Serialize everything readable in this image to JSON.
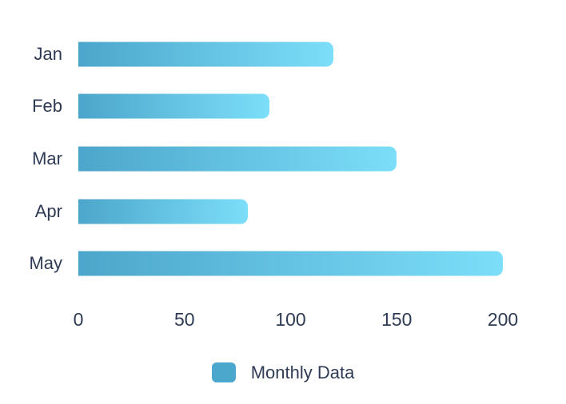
{
  "chart_data": {
    "type": "bar",
    "orientation": "horizontal",
    "title": "",
    "xlabel": "",
    "ylabel": "",
    "categories": [
      "Jan",
      "Feb",
      "Mar",
      "Apr",
      "May"
    ],
    "series": [
      {
        "name": "Monthly Data",
        "values": [
          120,
          90,
          150,
          80,
          200
        ]
      }
    ],
    "xlim": [
      0,
      200
    ],
    "xticks": [
      0,
      50,
      100,
      150,
      200
    ],
    "grid": false,
    "legend_position": "bottom",
    "colors": {
      "bar_gradient_start": "#4CA6CB",
      "bar_gradient_end": "#7CDEF9",
      "legend_swatch": "#4BA7CB",
      "text": "#2F3B54",
      "background": "#FFFFFF"
    }
  },
  "legend": {
    "label": "Monthly Data"
  }
}
